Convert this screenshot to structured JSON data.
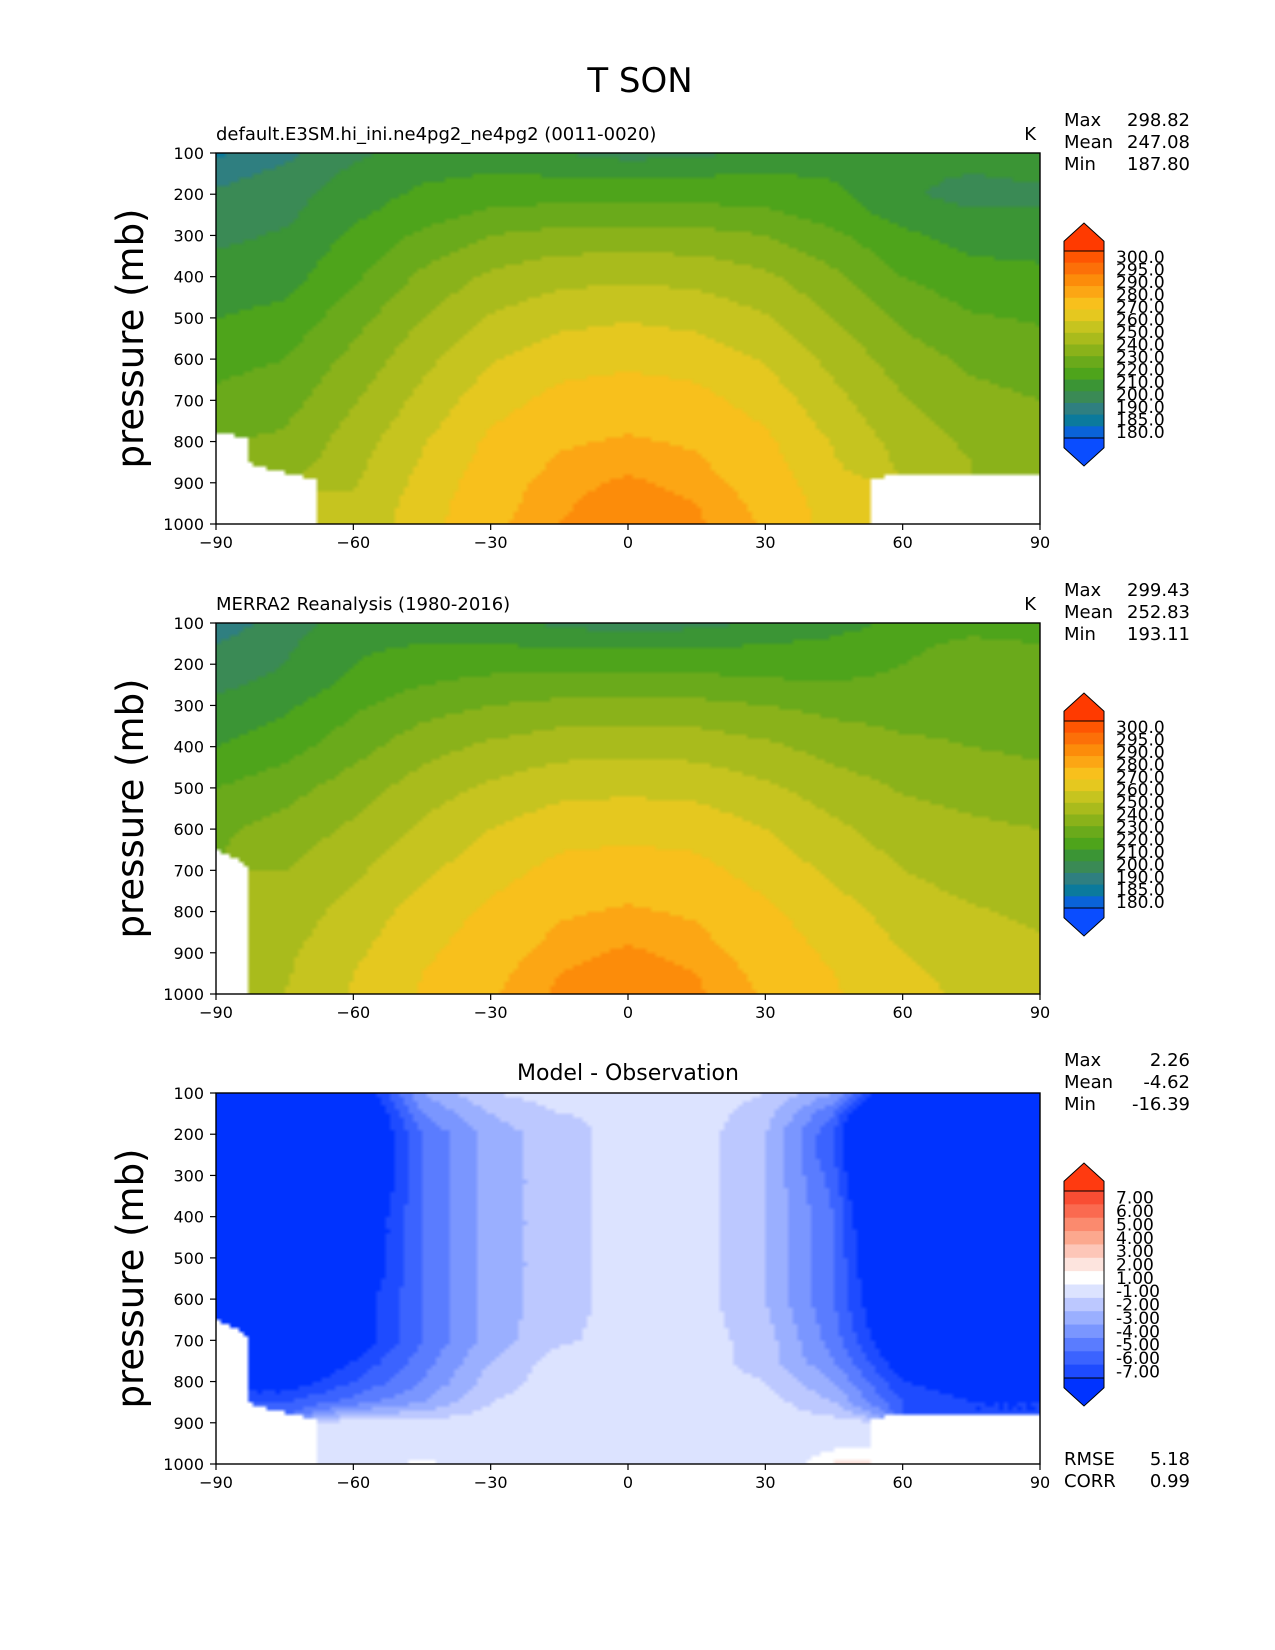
{
  "figure": {
    "title": "T SON"
  },
  "palettes": {
    "abs": [
      "#0a4dff",
      "#0a63d8",
      "#0b7a9c",
      "#2f7f80",
      "#3a8a55",
      "#3b9535",
      "#4ea41b",
      "#6aaa1b",
      "#8ab21a",
      "#a9bb1c",
      "#c6c41f",
      "#e5c81f",
      "#f8c01c",
      "#fca614",
      "#fc8c0a",
      "#fc7008",
      "#fe5602",
      "#ff3a00"
    ],
    "diff": [
      "#0033ff",
      "#1e4bff",
      "#3b63ff",
      "#5a7cff",
      "#7a96ff",
      "#9aafff",
      "#bcc8ff",
      "#dce3ff",
      "#ffffff",
      "#fde4de",
      "#fdc6b8",
      "#fca88e",
      "#fb8a6e",
      "#fa6a50",
      "#f94d33",
      "#ff3a10"
    ]
  },
  "panels": [
    {
      "id": "model",
      "title_left": "default.E3SM.hi_ini.ne4pg2_ne4pg2 (0011-0020)",
      "title_center": "",
      "units": "K",
      "stats": [
        {
          "label": "Max",
          "value": "298.82"
        },
        {
          "label": "Mean",
          "value": "247.08"
        },
        {
          "label": "Min",
          "value": "187.80"
        }
      ],
      "colorbar_labels": [
        "300.0",
        "295.0",
        "290.0",
        "280.0",
        "270.0",
        "260.0",
        "250.0",
        "240.0",
        "230.0",
        "220.0",
        "210.0",
        "200.0",
        "190.0",
        "185.0",
        "180.0"
      ],
      "extra_stats": []
    },
    {
      "id": "obs",
      "title_left": "MERRA2 Reanalysis (1980-2016)",
      "title_center": "",
      "units": "K",
      "stats": [
        {
          "label": "Max",
          "value": "299.43"
        },
        {
          "label": "Mean",
          "value": "252.83"
        },
        {
          "label": "Min",
          "value": "193.11"
        }
      ],
      "colorbar_labels": [
        "300.0",
        "295.0",
        "290.0",
        "280.0",
        "270.0",
        "260.0",
        "250.0",
        "240.0",
        "230.0",
        "220.0",
        "210.0",
        "200.0",
        "190.0",
        "185.0",
        "180.0"
      ],
      "extra_stats": []
    },
    {
      "id": "diff",
      "title_left": "",
      "title_center": "Model - Observation",
      "units": "",
      "stats": [
        {
          "label": "Max",
          "value": "2.26"
        },
        {
          "label": "Mean",
          "value": "-4.62"
        },
        {
          "label": "Min",
          "value": "-16.39"
        }
      ],
      "colorbar_labels": [
        "7.00",
        "6.00",
        "5.00",
        "4.00",
        "3.00",
        "2.00",
        "1.00",
        "-1.00",
        "-2.00",
        "-3.00",
        "-4.00",
        "-5.00",
        "-6.00",
        "-7.00"
      ],
      "extra_stats": [
        {
          "label": "RMSE",
          "value": "5.18"
        },
        {
          "label": "CORR",
          "value": "0.99"
        }
      ]
    }
  ],
  "chart_data": [
    {
      "type": "contourf",
      "title": "default.E3SM.hi_ini.ne4pg2_ne4pg2 (0011-0020)",
      "xlabel": "",
      "ylabel": "pressure (mb)",
      "xlim": [
        -90,
        90
      ],
      "ylim": [
        1000,
        100
      ],
      "xticks": [
        -90,
        -60,
        -30,
        0,
        30,
        60,
        90
      ],
      "yticks": [
        100,
        200,
        300,
        400,
        500,
        600,
        700,
        800,
        900,
        1000
      ],
      "colorbar_unit": "K",
      "levels": [
        180,
        185,
        190,
        200,
        210,
        220,
        230,
        240,
        250,
        260,
        270,
        280,
        290,
        295,
        300
      ],
      "lat": [
        -90,
        -75,
        -60,
        -45,
        -30,
        -15,
        0,
        15,
        30,
        45,
        60,
        75,
        90
      ],
      "lev": [
        100,
        150,
        200,
        250,
        300,
        400,
        500,
        600,
        700,
        750,
        800,
        850,
        900,
        950,
        1000
      ],
      "missing": "surface below ground shown blank (south of -75 below 750 mb, -75..-55 below 870 mb, 55..90 below 870 mb)",
      "field": [
        [
          188,
          197,
          208,
          214,
          216,
          210,
          206,
          208,
          212,
          216,
          214,
          214,
          214
        ],
        [
          196,
          203,
          212,
          218,
          220,
          219,
          218,
          219,
          220,
          219,
          212,
          210,
          212
        ],
        [
          202,
          206,
          215,
          222,
          226,
          227,
          227,
          227,
          226,
          222,
          212,
          206,
          208
        ],
        [
          205,
          208,
          218,
          226,
          232,
          234,
          234,
          234,
          232,
          226,
          216,
          212,
          212
        ],
        [
          208,
          211,
          222,
          232,
          240,
          244,
          244,
          244,
          240,
          232,
          222,
          216,
          216
        ],
        [
          214,
          216,
          228,
          242,
          252,
          257,
          258,
          257,
          252,
          242,
          230,
          224,
          222
        ],
        [
          220,
          223,
          236,
          250,
          261,
          267,
          269,
          267,
          261,
          250,
          238,
          231,
          229
        ],
        [
          227,
          230,
          243,
          257,
          269,
          276,
          278,
          276,
          269,
          257,
          245,
          238,
          235
        ],
        [
          232,
          236,
          249,
          263,
          276,
          283,
          285,
          283,
          276,
          263,
          251,
          243,
          240
        ],
        [
          234,
          239,
          252,
          266,
          279,
          286,
          288,
          286,
          279,
          266,
          253,
          246,
          242
        ],
        [
          null,
          242,
          255,
          269,
          282,
          289,
          291,
          289,
          282,
          269,
          256,
          248,
          244
        ],
        [
          null,
          244,
          257,
          271,
          284,
          291,
          293,
          291,
          284,
          271,
          258,
          250,
          246
        ],
        [
          null,
          null,
          259,
          273,
          286,
          293,
          296,
          293,
          286,
          273,
          null,
          null,
          null
        ],
        [
          null,
          null,
          261,
          275,
          287,
          294,
          298,
          295,
          288,
          275,
          null,
          null,
          null
        ],
        [
          null,
          null,
          262,
          276,
          288,
          295,
          298.8,
          296,
          289,
          276,
          null,
          null,
          null
        ]
      ]
    },
    {
      "type": "contourf",
      "title": "MERRA2 Reanalysis (1980-2016)",
      "xlabel": "",
      "ylabel": "pressure (mb)",
      "xlim": [
        -90,
        90
      ],
      "ylim": [
        1000,
        100
      ],
      "xticks": [
        -90,
        -60,
        -30,
        0,
        30,
        60,
        90
      ],
      "yticks": [
        100,
        200,
        300,
        400,
        500,
        600,
        700,
        800,
        900,
        1000
      ],
      "colorbar_unit": "K",
      "levels": [
        180,
        185,
        190,
        200,
        210,
        220,
        230,
        240,
        250,
        260,
        270,
        280,
        290,
        295,
        300
      ],
      "lat": [
        -90,
        -75,
        -60,
        -45,
        -30,
        -15,
        0,
        15,
        30,
        45,
        60,
        75,
        90
      ],
      "lev": [
        100,
        150,
        200,
        250,
        300,
        400,
        500,
        600,
        700,
        750,
        800,
        850,
        900,
        950,
        1000
      ],
      "missing": "surface below ground shown blank near -90..-82 below 650 mb",
      "field": [
        [
          194,
          205,
          215,
          216,
          214,
          208,
          205,
          207,
          211,
          216,
          222,
          226,
          225
        ],
        [
          200,
          208,
          218,
          220,
          220,
          218,
          217,
          218,
          220,
          222,
          228,
          232,
          230
        ],
        [
          204,
          210,
          220,
          225,
          227,
          227,
          227,
          227,
          226,
          226,
          230,
          234,
          232
        ],
        [
          208,
          213,
          223,
          230,
          233,
          234,
          234,
          234,
          232,
          231,
          232,
          234,
          232
        ],
        [
          212,
          218,
          228,
          236,
          240,
          243,
          244,
          243,
          240,
          237,
          236,
          236,
          234
        ],
        [
          220,
          226,
          236,
          246,
          252,
          256,
          257,
          256,
          252,
          246,
          242,
          240,
          238
        ],
        [
          230,
          236,
          245,
          255,
          262,
          267,
          268,
          267,
          262,
          255,
          249,
          246,
          244
        ],
        [
          238,
          244,
          252,
          262,
          270,
          276,
          277,
          276,
          270,
          262,
          255,
          252,
          250
        ],
        [
          null,
          250,
          258,
          268,
          276,
          283,
          285,
          283,
          276,
          268,
          260,
          256,
          254
        ],
        [
          null,
          252,
          261,
          271,
          279,
          286,
          288,
          286,
          279,
          271,
          263,
          258,
          256
        ],
        [
          null,
          254,
          264,
          274,
          282,
          289,
          291,
          289,
          282,
          274,
          266,
          261,
          258
        ],
        [
          null,
          256,
          266,
          276,
          284,
          291,
          293,
          291,
          284,
          276,
          268,
          263,
          260
        ],
        [
          null,
          258,
          268,
          278,
          286,
          293,
          296,
          293,
          286,
          278,
          270,
          265,
          262
        ],
        [
          null,
          259,
          270,
          280,
          288,
          295,
          298,
          295,
          288,
          280,
          272,
          267,
          264
        ],
        [
          null,
          260,
          271,
          281,
          289,
          296,
          299.4,
          296,
          289,
          281,
          273,
          268,
          265
        ]
      ]
    },
    {
      "type": "contourf",
      "title": "Model - Observation",
      "xlabel": "",
      "ylabel": "pressure (mb)",
      "xlim": [
        -90,
        90
      ],
      "ylim": [
        1000,
        100
      ],
      "xticks": [
        -90,
        -60,
        -30,
        0,
        30,
        60,
        90
      ],
      "yticks": [
        100,
        200,
        300,
        400,
        500,
        600,
        700,
        800,
        900,
        1000
      ],
      "levels": [
        -7,
        -6,
        -5,
        -4,
        -3,
        -2,
        -1,
        1,
        2,
        3,
        4,
        5,
        6,
        7
      ],
      "lat": [
        -90,
        -75,
        -60,
        -45,
        -30,
        -15,
        0,
        15,
        30,
        45,
        60,
        75,
        90
      ],
      "lev": [
        100,
        150,
        200,
        250,
        300,
        400,
        500,
        600,
        700,
        750,
        800,
        850,
        900,
        950,
        1000
      ],
      "missing": "blank where model or observation is below ground",
      "field": [
        [
          -8,
          -9,
          -9,
          -3,
          -1,
          -0.5,
          -1,
          -0.5,
          -1,
          -3,
          -10,
          -13,
          -12
        ],
        [
          -9,
          -10,
          -10,
          -4,
          -2,
          -1,
          -0.8,
          -0.5,
          -1.5,
          -5,
          -14,
          -16,
          -16
        ],
        [
          -10,
          -11,
          -10,
          -5,
          -2.5,
          -1.5,
          -0.5,
          -0.5,
          -2,
          -6,
          -16,
          -16.4,
          -16
        ],
        [
          -11,
          -11,
          -10,
          -5,
          -2.5,
          -1.5,
          -0.5,
          -0.5,
          -2,
          -6,
          -15,
          -16,
          -15
        ],
        [
          -12,
          -11,
          -10,
          -5,
          -2.5,
          -1.5,
          -0.5,
          -0.5,
          -2,
          -5.5,
          -14,
          -15,
          -15
        ],
        [
          -12,
          -11,
          -9,
          -5,
          -2.5,
          -1.5,
          -0.5,
          -0.5,
          -2,
          -5,
          -12,
          -13,
          -12
        ],
        [
          -11,
          -10,
          -9,
          -5,
          -2.5,
          -1.5,
          -0.5,
          -0.5,
          -2,
          -5,
          -11,
          -12,
          -12
        ],
        [
          -10,
          -9,
          -8,
          -5,
          -2.5,
          -1.5,
          -0.5,
          -0.5,
          -2,
          -5,
          -10,
          -11,
          -11
        ],
        [
          null,
          -9,
          -8,
          -5,
          -2.5,
          -1.2,
          -0.5,
          -0.5,
          -1.5,
          -4.5,
          -9,
          -10,
          -10
        ],
        [
          null,
          -9,
          -7,
          -4.5,
          -2,
          -0.5,
          -0.5,
          -0.5,
          -1.5,
          -4,
          -8,
          -9,
          -9
        ],
        [
          null,
          -8,
          -6,
          -4,
          -1.5,
          -0.5,
          -0.5,
          -0.5,
          -1,
          -3,
          -7,
          -8,
          -8
        ],
        [
          null,
          -6,
          -4.5,
          -3,
          -1,
          -0.5,
          -0.5,
          -0.5,
          -0.5,
          -2,
          -6,
          -7,
          -7
        ],
        [
          null,
          null,
          -0.5,
          -0.5,
          -0.5,
          -0.5,
          -0.5,
          -0.5,
          -0.5,
          -0.5,
          null,
          null,
          null
        ],
        [
          null,
          null,
          -0.5,
          -0.5,
          -0.5,
          -0.5,
          -0.5,
          -0.5,
          -0.5,
          0.5,
          null,
          null,
          null
        ],
        [
          null,
          null,
          -0.5,
          1.5,
          -0.5,
          -0.5,
          -0.5,
          -0.5,
          -0.5,
          2.2,
          null,
          null,
          null
        ]
      ]
    }
  ]
}
